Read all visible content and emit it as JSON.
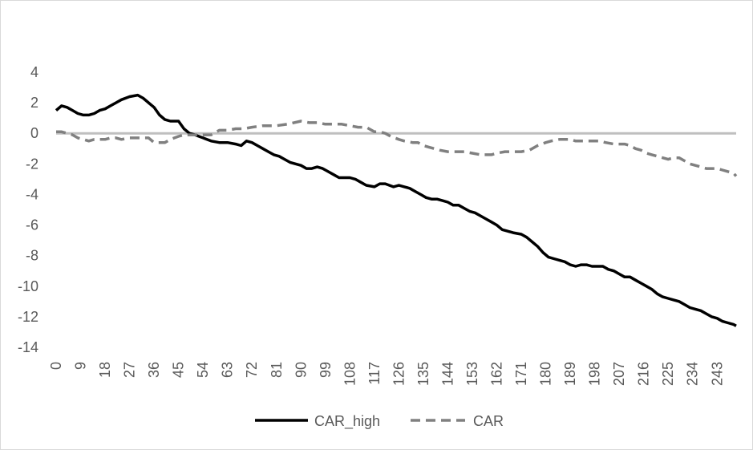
{
  "chart_data": {
    "type": "line",
    "title": "",
    "xlabel": "",
    "ylabel": "",
    "ylim": [
      -14,
      4
    ],
    "yticks": [
      4,
      2,
      0,
      -2,
      -4,
      -6,
      -8,
      -10,
      -12,
      -14
    ],
    "xlim": [
      0,
      250
    ],
    "xticks": [
      0,
      9,
      18,
      27,
      36,
      45,
      54,
      63,
      72,
      81,
      90,
      99,
      108,
      117,
      126,
      135,
      144,
      153,
      162,
      171,
      180,
      189,
      198,
      207,
      216,
      225,
      234,
      243
    ],
    "grid": false,
    "zero_line": true,
    "legend_position": "bottom",
    "colors": {
      "zero_line": "#bfbfbf",
      "axis_text": "#595959",
      "border": "#d9d9d9"
    },
    "series": [
      {
        "name": "CAR_high",
        "color": "#000000",
        "style": "solid",
        "points": [
          [
            0,
            1.5
          ],
          [
            2,
            1.8
          ],
          [
            4,
            1.7
          ],
          [
            6,
            1.5
          ],
          [
            8,
            1.3
          ],
          [
            10,
            1.2
          ],
          [
            12,
            1.2
          ],
          [
            14,
            1.3
          ],
          [
            16,
            1.5
          ],
          [
            18,
            1.6
          ],
          [
            20,
            1.8
          ],
          [
            22,
            2.0
          ],
          [
            24,
            2.2
          ],
          [
            27,
            2.4
          ],
          [
            30,
            2.5
          ],
          [
            32,
            2.3
          ],
          [
            34,
            2.0
          ],
          [
            36,
            1.7
          ],
          [
            38,
            1.2
          ],
          [
            40,
            0.9
          ],
          [
            42,
            0.8
          ],
          [
            45,
            0.8
          ],
          [
            47,
            0.3
          ],
          [
            49,
            0.0
          ],
          [
            51,
            -0.1
          ],
          [
            54,
            -0.3
          ],
          [
            57,
            -0.5
          ],
          [
            60,
            -0.6
          ],
          [
            63,
            -0.6
          ],
          [
            66,
            -0.7
          ],
          [
            68,
            -0.8
          ],
          [
            70,
            -0.5
          ],
          [
            72,
            -0.6
          ],
          [
            74,
            -0.8
          ],
          [
            76,
            -1.0
          ],
          [
            78,
            -1.2
          ],
          [
            80,
            -1.4
          ],
          [
            82,
            -1.5
          ],
          [
            84,
            -1.7
          ],
          [
            86,
            -1.9
          ],
          [
            88,
            -2.0
          ],
          [
            90,
            -2.1
          ],
          [
            92,
            -2.3
          ],
          [
            94,
            -2.3
          ],
          [
            96,
            -2.2
          ],
          [
            98,
            -2.3
          ],
          [
            100,
            -2.5
          ],
          [
            102,
            -2.7
          ],
          [
            104,
            -2.9
          ],
          [
            106,
            -2.9
          ],
          [
            108,
            -2.9
          ],
          [
            110,
            -3.0
          ],
          [
            112,
            -3.2
          ],
          [
            114,
            -3.4
          ],
          [
            117,
            -3.5
          ],
          [
            119,
            -3.3
          ],
          [
            121,
            -3.3
          ],
          [
            124,
            -3.5
          ],
          [
            126,
            -3.4
          ],
          [
            128,
            -3.5
          ],
          [
            130,
            -3.6
          ],
          [
            132,
            -3.8
          ],
          [
            134,
            -4.0
          ],
          [
            136,
            -4.2
          ],
          [
            138,
            -4.3
          ],
          [
            140,
            -4.3
          ],
          [
            142,
            -4.4
          ],
          [
            144,
            -4.5
          ],
          [
            146,
            -4.7
          ],
          [
            148,
            -4.7
          ],
          [
            150,
            -4.9
          ],
          [
            152,
            -5.1
          ],
          [
            154,
            -5.2
          ],
          [
            156,
            -5.4
          ],
          [
            158,
            -5.6
          ],
          [
            160,
            -5.8
          ],
          [
            162,
            -6.0
          ],
          [
            164,
            -6.3
          ],
          [
            166,
            -6.4
          ],
          [
            168,
            -6.5
          ],
          [
            171,
            -6.6
          ],
          [
            173,
            -6.8
          ],
          [
            175,
            -7.1
          ],
          [
            177,
            -7.4
          ],
          [
            179,
            -7.8
          ],
          [
            181,
            -8.1
          ],
          [
            183,
            -8.2
          ],
          [
            185,
            -8.3
          ],
          [
            187,
            -8.4
          ],
          [
            189,
            -8.6
          ],
          [
            191,
            -8.7
          ],
          [
            193,
            -8.6
          ],
          [
            195,
            -8.6
          ],
          [
            197,
            -8.7
          ],
          [
            199,
            -8.7
          ],
          [
            201,
            -8.7
          ],
          [
            203,
            -8.9
          ],
          [
            205,
            -9.0
          ],
          [
            207,
            -9.2
          ],
          [
            209,
            -9.4
          ],
          [
            211,
            -9.4
          ],
          [
            213,
            -9.6
          ],
          [
            215,
            -9.8
          ],
          [
            217,
            -10.0
          ],
          [
            219,
            -10.2
          ],
          [
            221,
            -10.5
          ],
          [
            223,
            -10.7
          ],
          [
            225,
            -10.8
          ],
          [
            227,
            -10.9
          ],
          [
            229,
            -11.0
          ],
          [
            231,
            -11.2
          ],
          [
            233,
            -11.4
          ],
          [
            235,
            -11.5
          ],
          [
            237,
            -11.6
          ],
          [
            239,
            -11.8
          ],
          [
            241,
            -12.0
          ],
          [
            243,
            -12.1
          ],
          [
            245,
            -12.3
          ],
          [
            247,
            -12.4
          ],
          [
            249,
            -12.5
          ],
          [
            250,
            -12.6
          ]
        ]
      },
      {
        "name": "CAR",
        "color": "#808080",
        "style": "dashed",
        "points": [
          [
            0,
            0.1
          ],
          [
            2,
            0.1
          ],
          [
            4,
            0.0
          ],
          [
            6,
            -0.1
          ],
          [
            8,
            -0.3
          ],
          [
            10,
            -0.4
          ],
          [
            12,
            -0.5
          ],
          [
            14,
            -0.4
          ],
          [
            16,
            -0.4
          ],
          [
            18,
            -0.4
          ],
          [
            20,
            -0.3
          ],
          [
            22,
            -0.3
          ],
          [
            24,
            -0.4
          ],
          [
            27,
            -0.3
          ],
          [
            30,
            -0.3
          ],
          [
            32,
            -0.3
          ],
          [
            34,
            -0.3
          ],
          [
            36,
            -0.6
          ],
          [
            38,
            -0.6
          ],
          [
            40,
            -0.6
          ],
          [
            42,
            -0.4
          ],
          [
            45,
            -0.2
          ],
          [
            47,
            -0.1
          ],
          [
            49,
            -0.1
          ],
          [
            52,
            -0.1
          ],
          [
            54,
            -0.1
          ],
          [
            57,
            -0.1
          ],
          [
            60,
            0.2
          ],
          [
            63,
            0.2
          ],
          [
            66,
            0.3
          ],
          [
            69,
            0.3
          ],
          [
            72,
            0.4
          ],
          [
            76,
            0.5
          ],
          [
            81,
            0.5
          ],
          [
            85,
            0.6
          ],
          [
            90,
            0.8
          ],
          [
            93,
            0.7
          ],
          [
            96,
            0.7
          ],
          [
            99,
            0.6
          ],
          [
            102,
            0.6
          ],
          [
            105,
            0.6
          ],
          [
            108,
            0.5
          ],
          [
            111,
            0.4
          ],
          [
            114,
            0.4
          ],
          [
            117,
            0.1
          ],
          [
            119,
            0.1
          ],
          [
            121,
            0.0
          ],
          [
            123,
            -0.2
          ],
          [
            126,
            -0.4
          ],
          [
            128,
            -0.5
          ],
          [
            131,
            -0.6
          ],
          [
            133,
            -0.6
          ],
          [
            135,
            -0.8
          ],
          [
            137,
            -0.9
          ],
          [
            139,
            -1.0
          ],
          [
            141,
            -1.1
          ],
          [
            144,
            -1.2
          ],
          [
            147,
            -1.2
          ],
          [
            150,
            -1.2
          ],
          [
            153,
            -1.3
          ],
          [
            156,
            -1.4
          ],
          [
            158,
            -1.4
          ],
          [
            160,
            -1.4
          ],
          [
            162,
            -1.3
          ],
          [
            165,
            -1.2
          ],
          [
            168,
            -1.2
          ],
          [
            171,
            -1.2
          ],
          [
            174,
            -1.1
          ],
          [
            177,
            -0.8
          ],
          [
            180,
            -0.6
          ],
          [
            182,
            -0.5
          ],
          [
            185,
            -0.4
          ],
          [
            187,
            -0.4
          ],
          [
            189,
            -0.4
          ],
          [
            191,
            -0.5
          ],
          [
            194,
            -0.5
          ],
          [
            196,
            -0.5
          ],
          [
            198,
            -0.5
          ],
          [
            200,
            -0.5
          ],
          [
            202,
            -0.6
          ],
          [
            205,
            -0.7
          ],
          [
            207,
            -0.7
          ],
          [
            209,
            -0.7
          ],
          [
            211,
            -0.8
          ],
          [
            213,
            -1.0
          ],
          [
            215,
            -1.1
          ],
          [
            217,
            -1.3
          ],
          [
            219,
            -1.4
          ],
          [
            221,
            -1.5
          ],
          [
            223,
            -1.6
          ],
          [
            225,
            -1.7
          ],
          [
            227,
            -1.6
          ],
          [
            229,
            -1.6
          ],
          [
            231,
            -1.8
          ],
          [
            233,
            -2.0
          ],
          [
            235,
            -2.1
          ],
          [
            237,
            -2.2
          ],
          [
            239,
            -2.3
          ],
          [
            241,
            -2.3
          ],
          [
            243,
            -2.3
          ],
          [
            245,
            -2.4
          ],
          [
            247,
            -2.5
          ],
          [
            249,
            -2.6
          ],
          [
            250,
            -2.8
          ]
        ]
      }
    ]
  }
}
